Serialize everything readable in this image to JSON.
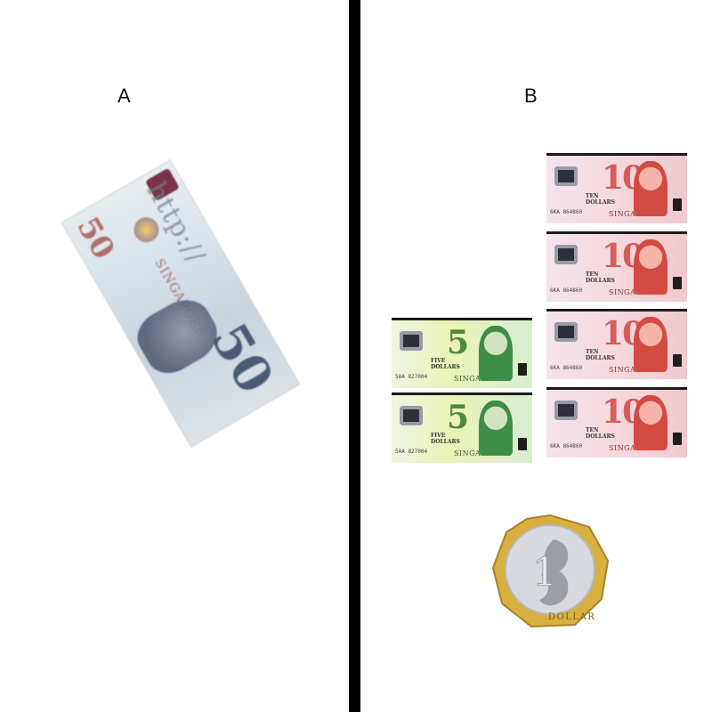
{
  "panels": {
    "a": {
      "label": "A",
      "banknote": {
        "denomination": "50",
        "url_text": "http://",
        "country": "SINGAPORE",
        "kind": "rotated blurry banknote"
      }
    },
    "b": {
      "label": "B",
      "ten_dollar_notes": [
        {
          "denomination": "10",
          "words": "TEN\nDOLLARS",
          "country": "SINGAPORE",
          "serial": "6KA 864860"
        },
        {
          "denomination": "10",
          "words": "TEN\nDOLLARS",
          "country": "SINGAPORE",
          "serial": "6KA 864860"
        },
        {
          "denomination": "10",
          "words": "TEN\nDOLLARS",
          "country": "SINGAPORE",
          "serial": "6KA 864860"
        },
        {
          "denomination": "10",
          "words": "TEN\nDOLLARS",
          "country": "SINGAPORE",
          "serial": "6KA 864860"
        }
      ],
      "five_dollar_notes": [
        {
          "denomination": "5",
          "words": "FIVE\nDOLLARS",
          "country": "SINGAPORE",
          "serial": "5AA 827004"
        },
        {
          "denomination": "5",
          "words": "FIVE\nDOLLARS",
          "country": "SINGAPORE",
          "serial": "5AA 827004"
        }
      ],
      "coin": {
        "denomination": "1",
        "word": "DOLLAR"
      }
    }
  },
  "colors": {
    "divider": "#000000",
    "ten_dollar_red": "#d85a5a",
    "five_dollar_green": "#4f8a3a",
    "coin_gold": "#d8b040",
    "coin_silver": "#d7d9de"
  }
}
